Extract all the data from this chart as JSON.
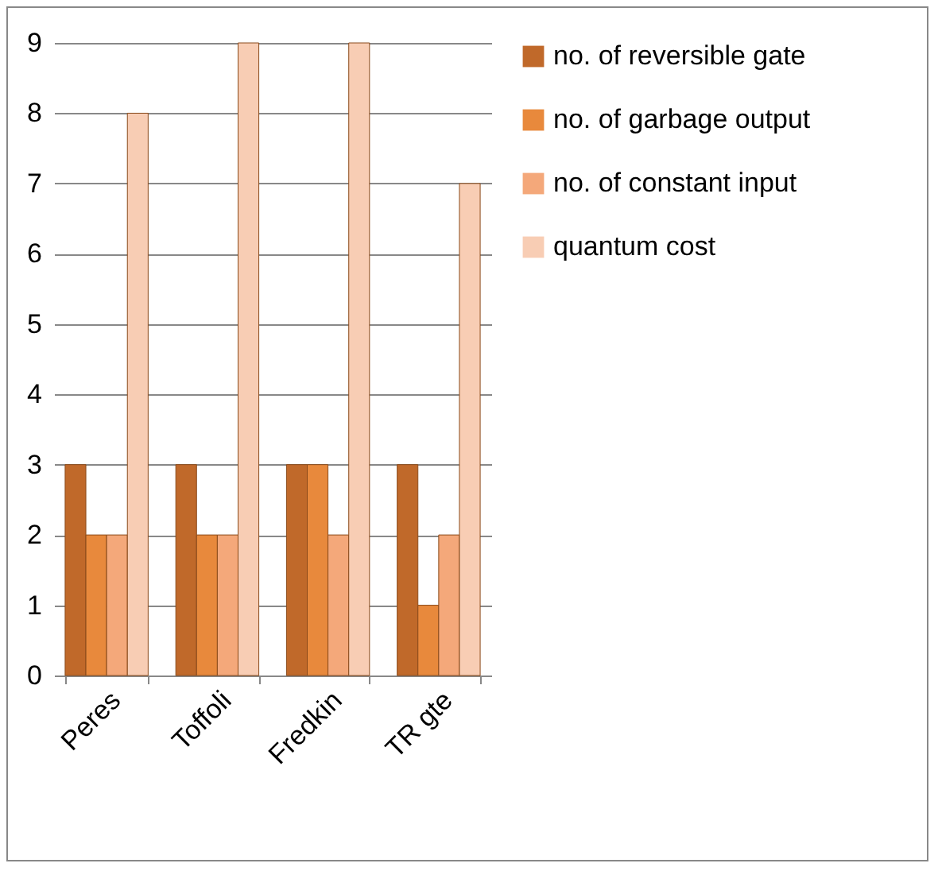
{
  "chart_data": {
    "type": "bar",
    "categories": [
      "Peres",
      "Toffoli",
      "Fredkin",
      "TR gte"
    ],
    "series": [
      {
        "name": "no. of reversible gate",
        "color": "#c0692a",
        "values": [
          3,
          3,
          3,
          3
        ]
      },
      {
        "name": "no. of garbage output",
        "color": "#e8893c",
        "values": [
          2,
          2,
          3,
          1
        ]
      },
      {
        "name": "no. of constant input",
        "color": "#f4a87a",
        "values": [
          2,
          2,
          2,
          2
        ]
      },
      {
        "name": "quantum cost",
        "color": "#f8cdb4",
        "values": [
          8,
          9,
          9,
          7
        ]
      }
    ],
    "ylim": [
      0,
      9
    ],
    "yticks": [
      0,
      1,
      2,
      3,
      4,
      5,
      6,
      7,
      8,
      9
    ],
    "grid": "y",
    "legend": "right"
  }
}
